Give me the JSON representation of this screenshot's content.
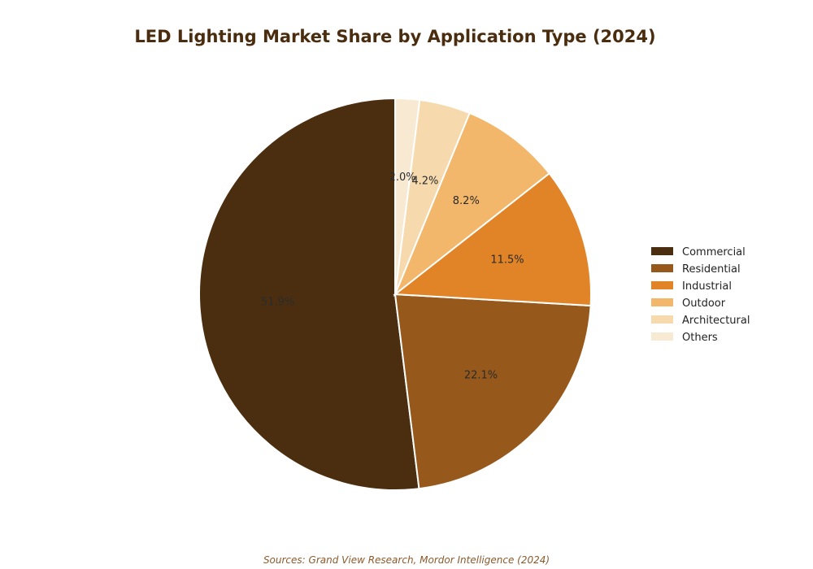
{
  "chart_data": {
    "type": "pie",
    "title": "LED Lighting Market Share by Application Type (2024)",
    "categories": [
      "Commercial",
      "Residential",
      "Industrial",
      "Outdoor",
      "Architectural",
      "Others"
    ],
    "values": [
      51.9,
      22.1,
      11.5,
      8.2,
      4.2,
      2.0
    ],
    "labels": [
      "51.9%",
      "22.1%",
      "11.5%",
      "8.2%",
      "4.2%",
      "2.0%"
    ],
    "colors": [
      "#4b2e0f",
      "#97591b",
      "#e08427",
      "#f2b76a",
      "#f6daae",
      "#f8ead2"
    ],
    "start_angle": "12 o'clock",
    "direction": "counterclockwise",
    "legend_placement": "right",
    "source": "Sources: Grand View Research, Mordor Intelligence (2024)"
  }
}
